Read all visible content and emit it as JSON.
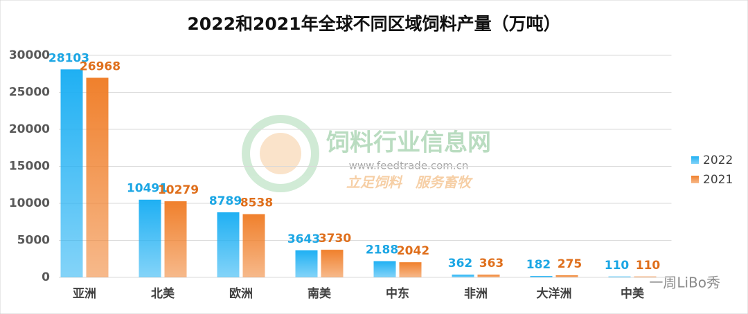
{
  "chart_data": {
    "type": "bar",
    "title": "2022和2021年全球不同区域饲料产量（万吨）",
    "categories": [
      "亚洲",
      "北美",
      "欧洲",
      "南美",
      "中东",
      "非洲",
      "大洋洲",
      "中美"
    ],
    "series": [
      {
        "name": "2022",
        "color": "#1fb0f3",
        "values": [
          28103,
          10491,
          8789,
          3643,
          2188,
          362,
          182,
          110
        ]
      },
      {
        "name": "2021",
        "color": "#f0802c",
        "values": [
          26968,
          10279,
          8538,
          3730,
          2042,
          363,
          275,
          110
        ]
      }
    ],
    "ylim": [
      0,
      30000
    ],
    "yticks": [
      0,
      5000,
      10000,
      15000,
      20000,
      25000,
      30000
    ],
    "grid": true,
    "legend": "right",
    "watermark": [
      "饲料行业信息网",
      "www.feedtrade.com.cn",
      "立足饲料　服务畜牧",
      "一周LiBo秀"
    ]
  }
}
